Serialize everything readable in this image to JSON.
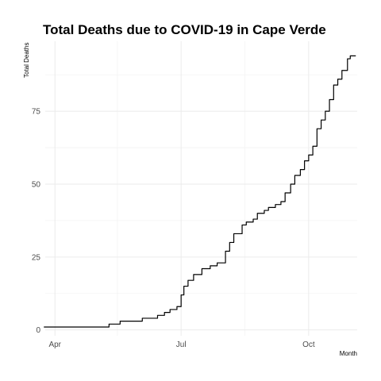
{
  "chart_data": {
    "type": "line",
    "title": "Total Deaths due to COVID-19 in Cape Verde",
    "xlabel": "Month",
    "ylabel": "Total Deaths",
    "x_tick_labels": [
      "Apr",
      "Jul",
      "Oct"
    ],
    "y_tick_labels": [
      "0",
      "25",
      "50",
      "75"
    ],
    "xlim": [
      "2020-03-25",
      "2020-11-05"
    ],
    "ylim": [
      -2,
      99
    ],
    "y_ticks": [
      0,
      25,
      50,
      75
    ],
    "y_minor_ticks": [
      12.5,
      37.5,
      62.5,
      87.5
    ],
    "x_ticks": [
      "2020-04-01",
      "2020-07-01",
      "2020-10-01"
    ],
    "x_minor_ticks": [
      "2020-05-16",
      "2020-08-16"
    ],
    "grid": true,
    "series": [
      {
        "x": [
          "2020-03-24",
          "2020-04-01",
          "2020-05-01",
          "2020-05-10",
          "2020-05-16",
          "2020-05-18",
          "2020-05-28",
          "2020-06-03",
          "2020-06-07",
          "2020-06-14",
          "2020-06-19",
          "2020-06-23",
          "2020-06-28",
          "2020-06-30",
          "2020-07-01",
          "2020-07-03",
          "2020-07-06",
          "2020-07-10",
          "2020-07-14",
          "2020-07-16",
          "2020-07-19",
          "2020-07-22",
          "2020-07-27",
          "2020-08-02",
          "2020-08-05",
          "2020-08-08",
          "2020-08-10",
          "2020-08-14",
          "2020-08-17",
          "2020-08-22",
          "2020-08-25",
          "2020-08-30",
          "2020-09-02",
          "2020-09-07",
          "2020-09-11",
          "2020-09-14",
          "2020-09-18",
          "2020-09-21",
          "2020-09-25",
          "2020-09-28",
          "2020-10-01",
          "2020-10-04",
          "2020-10-07",
          "2020-10-10",
          "2020-10-13",
          "2020-10-16",
          "2020-10-19",
          "2020-10-22",
          "2020-10-25",
          "2020-10-29",
          "2020-10-31",
          "2020-11-04"
        ],
        "values": [
          1,
          1,
          1,
          2,
          2,
          3,
          3,
          4,
          4,
          5,
          6,
          7,
          8,
          8,
          12,
          15,
          17,
          19,
          19,
          21,
          21,
          22,
          23,
          27,
          30,
          33,
          33,
          36,
          37,
          38,
          40,
          41,
          42,
          43,
          44,
          47,
          50,
          53,
          55,
          58,
          60,
          63,
          69,
          72,
          75,
          79,
          84,
          86,
          89,
          93,
          94,
          94
        ]
      }
    ]
  }
}
